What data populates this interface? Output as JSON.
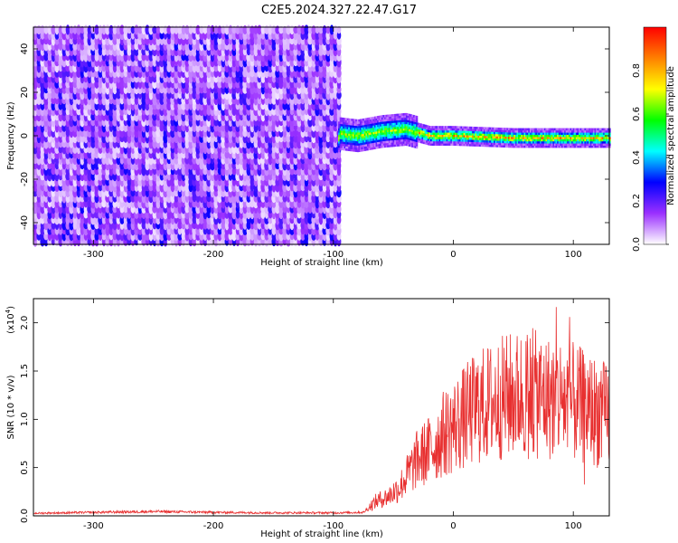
{
  "title": "C2E5.2024.327.22.47.G17",
  "chart_data": [
    {
      "type": "heatmap",
      "xlabel": "Height of straight line (km)",
      "ylabel": "Frequency (Hz)",
      "xlim": [
        -350,
        130
      ],
      "ylim": [
        -50,
        50
      ],
      "xticks": [
        -300,
        -200,
        -100,
        0,
        100
      ],
      "yticks": [
        -40,
        -20,
        0,
        20,
        40
      ],
      "noise_region": {
        "x_range": [
          -350,
          -96
        ],
        "y_range": [
          -50,
          50
        ],
        "amplitude_range": [
          0.05,
          0.25
        ]
      },
      "signal_band": {
        "x_range": [
          -96,
          130
        ],
        "center_hz": [
          {
            "x": -95,
            "y": 1
          },
          {
            "x": -80,
            "y": 0
          },
          {
            "x": -60,
            "y": 2
          },
          {
            "x": -40,
            "y": 3
          },
          {
            "x": -20,
            "y": 0
          },
          {
            "x": 0,
            "y": 0
          },
          {
            "x": 50,
            "y": -1
          },
          {
            "x": 100,
            "y": -1
          },
          {
            "x": 130,
            "y": -1
          }
        ],
        "peak_amplitude": 0.95
      },
      "colorbar": {
        "label": "Normalized spectral amplitude",
        "ticks": [
          "0.0",
          "0.2",
          "0.4",
          "0.6",
          "0.8"
        ],
        "range": [
          0,
          1
        ],
        "colors": [
          "#ffffff",
          "#9b30ff",
          "#0000ff",
          "#00ffff",
          "#00ff00",
          "#ffff00",
          "#ff8000",
          "#ff0000"
        ]
      }
    },
    {
      "type": "line",
      "xlabel": "Height of straight line (km)",
      "ylabel": "SNR (10 * v/v)",
      "y_multiplier": "(x10",
      "y_multiplier_exp": "4",
      "y_multiplier_close": ")",
      "xlim": [
        -350,
        130
      ],
      "ylim": [
        0,
        22500
      ],
      "xticks": [
        -300,
        -200,
        -100,
        0,
        100
      ],
      "yticks": [
        "0.0",
        "0.5",
        "1.0",
        "1.5",
        "2.0"
      ],
      "ytick_values": [
        0,
        5000,
        10000,
        15000,
        20000
      ],
      "color": "#e83030",
      "series": [
        {
          "name": "SNR",
          "x": [
            -350,
            -300,
            -250,
            -200,
            -150,
            -100,
            -75,
            -65,
            -60,
            -55,
            -50,
            -45,
            -40,
            -35,
            -30,
            -25,
            -20,
            -15,
            -10,
            -5,
            0,
            10,
            20,
            30,
            40,
            50,
            60,
            70,
            80,
            90,
            100,
            110,
            120,
            130
          ],
          "y": [
            300,
            400,
            500,
            400,
            350,
            350,
            400,
            1500,
            1800,
            2000,
            2500,
            3000,
            4000,
            5000,
            6000,
            6500,
            7000,
            7500,
            8500,
            9000,
            9500,
            10500,
            11500,
            12000,
            12500,
            12800,
            13000,
            12800,
            12500,
            12500,
            12000,
            11500,
            11000,
            10500
          ]
        }
      ]
    }
  ]
}
